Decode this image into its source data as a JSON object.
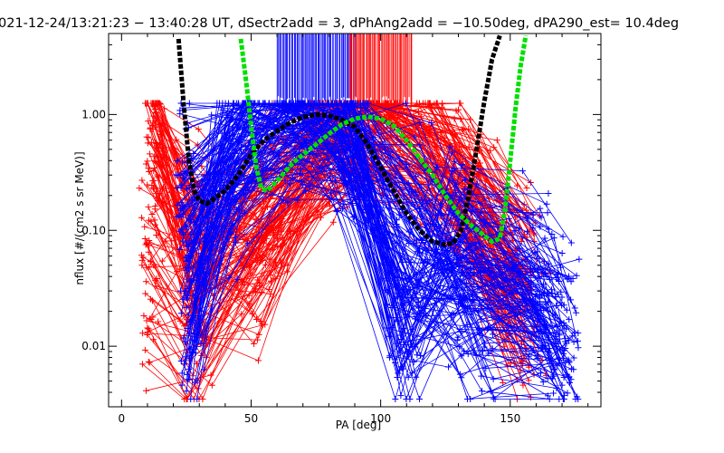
{
  "chart_data": {
    "type": "line",
    "title": "021-12-24/13:21:23 − 13:40:28 UT, dSectr2add = 3, dPhAng2add = −10.50deg, dPA290_est=  10.4deg",
    "xlabel": "PA [deg]",
    "ylabel": "nflux [#/(cm2 s sr MeV)]",
    "xlim": [
      -5,
      185
    ],
    "ylim": [
      0.003,
      5.0
    ],
    "yscale": "log",
    "x_ticks": [
      0,
      50,
      100,
      150
    ],
    "x_tick_labels": [
      "0",
      "50",
      "100",
      "150"
    ],
    "y_ticks": [
      0.01,
      0.1,
      1.0
    ],
    "y_tick_labels": [
      "0.01",
      "0.10",
      "1.00"
    ],
    "colors": {
      "red_series": "#ff0000",
      "blue_series": "#0000ff",
      "black_fit": "#000000",
      "green_fit": "#00e000"
    },
    "series": [
      {
        "color": "#000000",
        "style": "thick-dashed",
        "x": [
          22,
          24,
          26,
          28,
          30,
          33,
          36,
          40,
          45,
          50,
          55,
          60,
          65,
          70,
          75,
          80,
          85,
          90,
          95,
          100,
          105,
          110,
          115,
          120,
          125,
          128,
          131,
          134,
          137,
          140,
          143,
          146
        ],
        "y": [
          4.5,
          1.2,
          0.4,
          0.22,
          0.18,
          0.17,
          0.19,
          0.22,
          0.3,
          0.45,
          0.6,
          0.72,
          0.85,
          0.95,
          1.0,
          0.98,
          0.9,
          0.78,
          0.55,
          0.35,
          0.22,
          0.14,
          0.1,
          0.08,
          0.075,
          0.078,
          0.1,
          0.2,
          0.5,
          1.3,
          3.0,
          4.8
        ]
      },
      {
        "color": "#00e000",
        "style": "thick-dashed",
        "x": [
          46,
          48,
          50,
          52,
          54,
          56,
          58,
          62,
          66,
          70,
          75,
          80,
          85,
          90,
          95,
          100,
          105,
          110,
          115,
          120,
          125,
          130,
          135,
          140,
          143,
          146,
          148,
          150,
          152,
          154,
          156
        ],
        "y": [
          4.5,
          2.0,
          0.8,
          0.35,
          0.23,
          0.22,
          0.24,
          0.3,
          0.38,
          0.45,
          0.55,
          0.68,
          0.82,
          0.92,
          0.96,
          0.92,
          0.8,
          0.6,
          0.42,
          0.3,
          0.2,
          0.14,
          0.11,
          0.09,
          0.08,
          0.085,
          0.15,
          0.4,
          1.1,
          2.6,
          4.8
        ]
      }
    ],
    "red_curves": [
      {
        "x": [
          13,
          30,
          55,
          80,
          95,
          120,
          150
        ],
        "y": [
          1.0,
          0.12,
          0.09,
          0.45,
          0.9,
          0.6,
          0.03
        ]
      },
      {
        "x": [
          12,
          28,
          60,
          85,
          100,
          130,
          155
        ],
        "y": [
          0.5,
          0.06,
          0.2,
          0.7,
          1.0,
          0.35,
          0.06
        ]
      },
      {
        "x": [
          10,
          27,
          50,
          78,
          98,
          125,
          152
        ],
        "y": [
          0.05,
          0.03,
          0.04,
          0.55,
          0.95,
          0.3,
          0.02
        ]
      },
      {
        "x": [
          11,
          29,
          58,
          84,
          102,
          135,
          158
        ],
        "y": [
          0.02,
          0.008,
          0.12,
          0.8,
          1.05,
          0.15,
          0.01
        ]
      },
      {
        "x": [
          14,
          26,
          52,
          82,
          96,
          140,
          156
        ],
        "y": [
          0.25,
          0.15,
          0.06,
          0.6,
          0.85,
          0.2,
          0.05
        ]
      },
      {
        "x": [
          13,
          31,
          56,
          86,
          104,
          118,
          154
        ],
        "y": [
          0.8,
          0.04,
          0.35,
          0.9,
          1.1,
          0.9,
          0.08
        ]
      }
    ],
    "blue_curves": [
      {
        "x": [
          25,
          45,
          70,
          85,
          105,
          130,
          160,
          170
        ],
        "y": [
          0.15,
          0.9,
          1.0,
          0.8,
          0.05,
          0.03,
          0.03,
          0.01
        ]
      },
      {
        "x": [
          27,
          48,
          65,
          88,
          110,
          135,
          165
        ],
        "y": [
          0.06,
          0.7,
          1.05,
          0.7,
          0.02,
          0.05,
          0.02
        ]
      },
      {
        "x": [
          26,
          40,
          60,
          90,
          115,
          140,
          168
        ],
        "y": [
          0.01,
          0.4,
          0.9,
          0.6,
          0.2,
          0.01,
          0.008
        ]
      },
      {
        "x": [
          24,
          50,
          75,
          92,
          120,
          150,
          170
        ],
        "y": [
          0.3,
          1.0,
          1.1,
          0.5,
          0.1,
          0.06,
          0.015
        ]
      },
      {
        "x": [
          28,
          42,
          68,
          86,
          108,
          128,
          162
        ],
        "y": [
          0.02,
          0.2,
          0.95,
          0.75,
          0.009,
          0.1,
          0.04
        ]
      }
    ],
    "spikes": [
      {
        "color": "#0000ff",
        "x_range": [
          60,
          90
        ],
        "y_range": [
          1.2,
          5.0
        ],
        "count": 60
      },
      {
        "color": "#ff0000",
        "x_range": [
          88,
          112
        ],
        "y_range": [
          1.2,
          5.0
        ],
        "count": 50
      }
    ]
  }
}
